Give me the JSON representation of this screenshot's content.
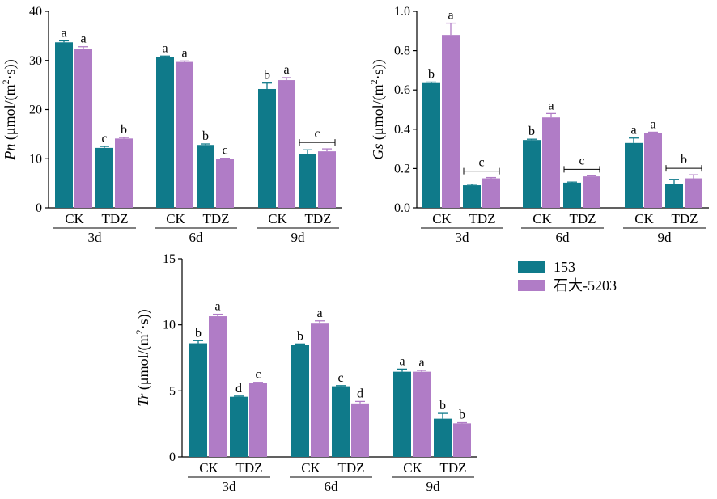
{
  "colors": {
    "s153": "#0f7a8a",
    "s5203": "#b07cc6",
    "axis": "#000000"
  },
  "legend": [
    {
      "name": "153",
      "color": "#0f7a8a"
    },
    {
      "name": "石大-5203",
      "color": "#b07cc6"
    }
  ],
  "chart_data": [
    {
      "id": "pn",
      "type": "bar",
      "ylabel": {
        "var": "Pn",
        "unit": "(μmol/(m",
        "sup": "2",
        "tail": "·s))"
      },
      "ylim": [
        0,
        40
      ],
      "yticks": [
        0,
        10,
        20,
        30,
        40
      ],
      "groups": [
        "3d",
        "6d",
        "9d"
      ],
      "treatments": [
        "CK",
        "TDZ"
      ],
      "series": [
        {
          "name": "153",
          "values": [
            [
              33.7,
              12.2
            ],
            [
              30.7,
              12.8
            ],
            [
              24.2,
              11.0
            ]
          ],
          "errors": [
            [
              0.3,
              0.3
            ],
            [
              0.2,
              0.2
            ],
            [
              1.2,
              0.8
            ]
          ]
        },
        {
          "name": "石大-5203",
          "values": [
            [
              32.3,
              14.1
            ],
            [
              29.7,
              10.0
            ],
            [
              26.0,
              11.5
            ]
          ],
          "errors": [
            [
              0.5,
              0.2
            ],
            [
              0.2,
              0.1
            ],
            [
              0.5,
              0.5
            ]
          ]
        }
      ],
      "letters": [
        {
          "group": "3d",
          "treatment": "CK",
          "items": [
            "a",
            "a"
          ]
        },
        {
          "group": "3d",
          "treatment": "TDZ",
          "items": [
            "c",
            "b"
          ]
        },
        {
          "group": "6d",
          "treatment": "CK",
          "items": [
            "a",
            "a"
          ]
        },
        {
          "group": "6d",
          "treatment": "TDZ",
          "items": [
            "b",
            "c"
          ]
        },
        {
          "group": "9d",
          "treatment": "CK",
          "items": [
            "b",
            "a"
          ]
        },
        {
          "group": "9d",
          "treatment": "TDZ",
          "bracket": "c"
        }
      ]
    },
    {
      "id": "gs",
      "type": "bar",
      "ylabel": {
        "var": "Gs",
        "unit": "(μmol/(m",
        "sup": "2",
        "tail": "·s))"
      },
      "ylim": [
        0,
        1.0
      ],
      "yticks": [
        0.0,
        0.2,
        0.4,
        0.6,
        0.8,
        1.0
      ],
      "yticklabels": [
        "0.0",
        "0.2",
        "0.4",
        "0.6",
        "0.8",
        "1.0"
      ],
      "groups": [
        "3d",
        "6d",
        "9d"
      ],
      "treatments": [
        "CK",
        "TDZ"
      ],
      "series": [
        {
          "name": "153",
          "values": [
            [
              0.635,
              0.115
            ],
            [
              0.345,
              0.128
            ],
            [
              0.33,
              0.12
            ]
          ],
          "errors": [
            [
              0.005,
              0.005
            ],
            [
              0.004,
              0.003
            ],
            [
              0.025,
              0.025
            ]
          ]
        },
        {
          "name": "石大-5203",
          "values": [
            [
              0.88,
              0.15
            ],
            [
              0.46,
              0.16
            ],
            [
              0.38,
              0.15
            ]
          ],
          "errors": [
            [
              0.06,
              0.004
            ],
            [
              0.02,
              0.003
            ],
            [
              0.005,
              0.018
            ]
          ]
        }
      ],
      "letters": [
        {
          "group": "3d",
          "treatment": "CK",
          "items": [
            "b",
            "a"
          ]
        },
        {
          "group": "3d",
          "treatment": "TDZ",
          "bracket": "c"
        },
        {
          "group": "6d",
          "treatment": "CK",
          "items": [
            "b",
            "a"
          ]
        },
        {
          "group": "6d",
          "treatment": "TDZ",
          "bracket": "c"
        },
        {
          "group": "9d",
          "treatment": "CK",
          "items": [
            "a",
            "a"
          ]
        },
        {
          "group": "9d",
          "treatment": "TDZ",
          "bracket": "b"
        }
      ]
    },
    {
      "id": "tr",
      "type": "bar",
      "ylabel": {
        "var": "Tr",
        "unit": "(μmol/(m",
        "sup": "2",
        "tail": "·s))"
      },
      "ylim": [
        0,
        15
      ],
      "yticks": [
        0,
        5,
        10,
        15
      ],
      "groups": [
        "3d",
        "6d",
        "9d"
      ],
      "treatments": [
        "CK",
        "TDZ"
      ],
      "series": [
        {
          "name": "153",
          "values": [
            [
              8.6,
              4.55
            ],
            [
              8.45,
              5.35
            ],
            [
              6.45,
              2.9
            ]
          ],
          "errors": [
            [
              0.2,
              0.05
            ],
            [
              0.1,
              0.05
            ],
            [
              0.2,
              0.4
            ]
          ]
        },
        {
          "name": "石大-5203",
          "values": [
            [
              10.65,
              5.6
            ],
            [
              10.15,
              4.05
            ],
            [
              6.45,
              2.55
            ]
          ],
          "errors": [
            [
              0.15,
              0.05
            ],
            [
              0.15,
              0.15
            ],
            [
              0.1,
              0.05
            ]
          ]
        }
      ],
      "letters": [
        {
          "group": "3d",
          "treatment": "CK",
          "items": [
            "b",
            "a"
          ]
        },
        {
          "group": "3d",
          "treatment": "TDZ",
          "items": [
            "d",
            "c"
          ]
        },
        {
          "group": "6d",
          "treatment": "CK",
          "items": [
            "b",
            "a"
          ]
        },
        {
          "group": "6d",
          "treatment": "TDZ",
          "items": [
            "c",
            "d"
          ]
        },
        {
          "group": "9d",
          "treatment": "CK",
          "items": [
            "a",
            "a"
          ]
        },
        {
          "group": "9d",
          "treatment": "TDZ",
          "items": [
            "b",
            "b"
          ]
        }
      ]
    }
  ]
}
